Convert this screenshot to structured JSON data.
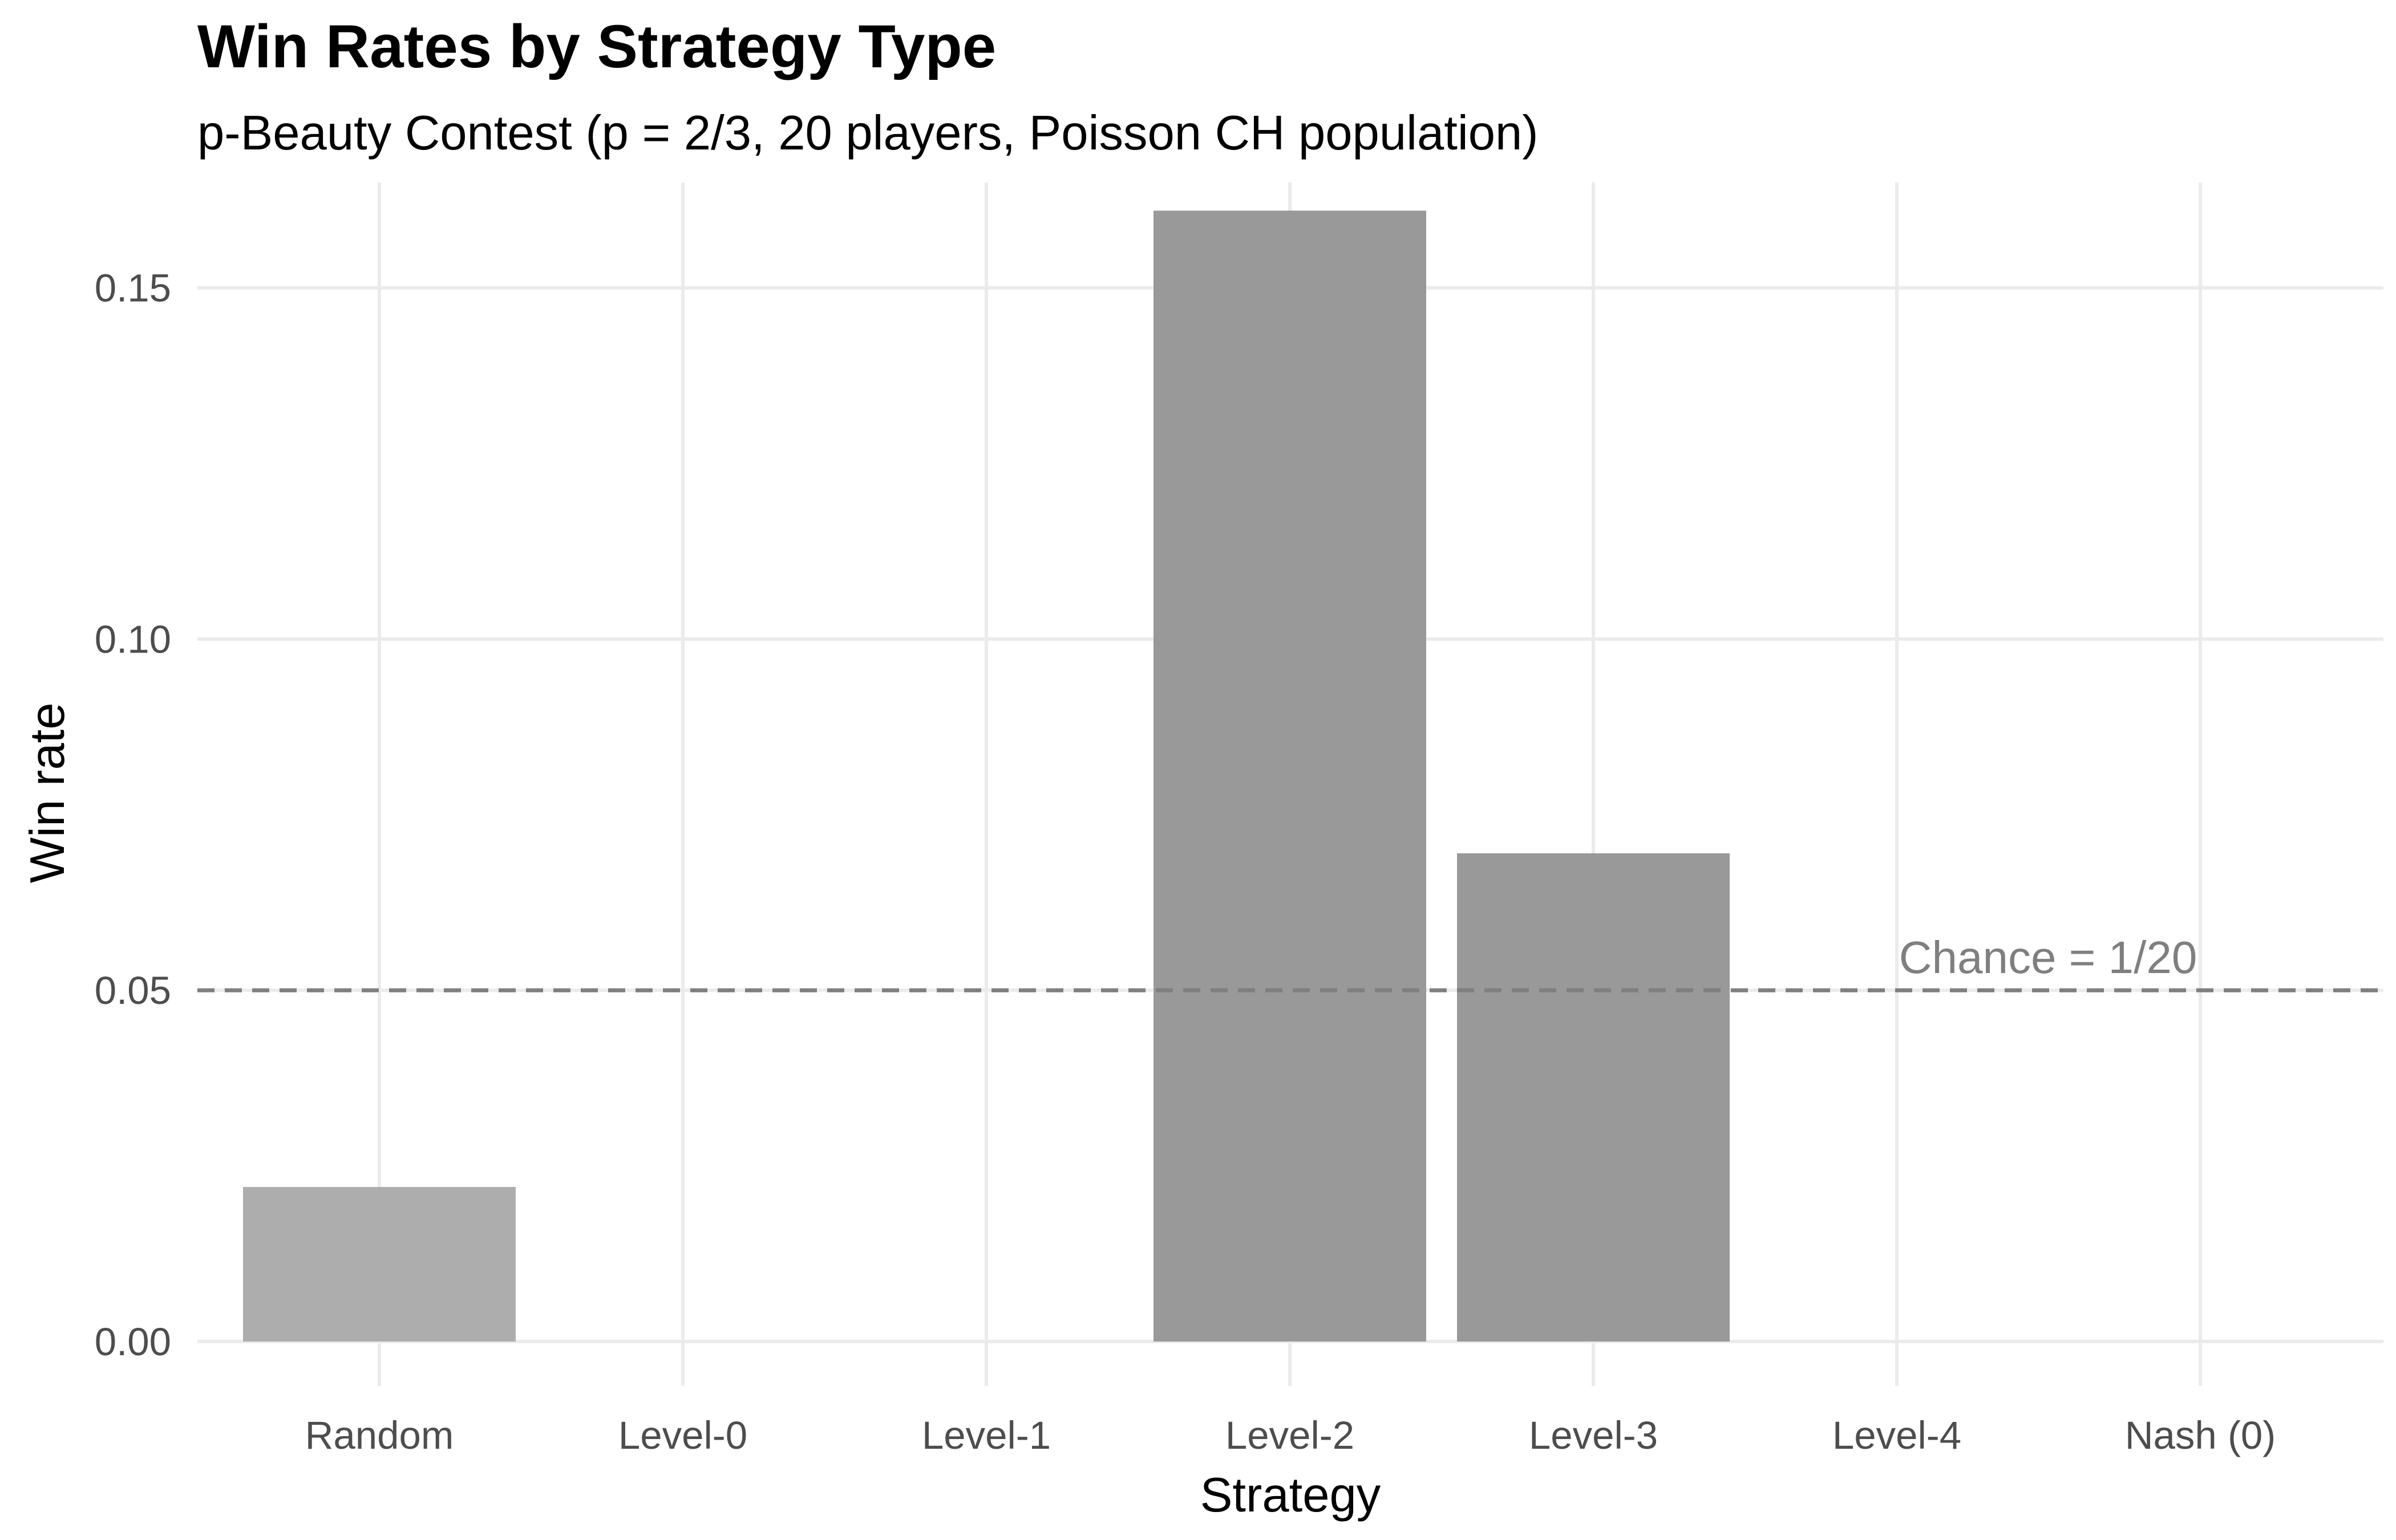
{
  "chart_data": {
    "type": "bar",
    "title": "Win Rates by Strategy Type",
    "subtitle": "p-Beauty Contest (p = 2/3, 20 players, Poisson CH population)",
    "xlabel": "Strategy",
    "ylabel": "Win rate",
    "categories": [
      "Random",
      "Level-0",
      "Level-1",
      "Level-2",
      "Level-3",
      "Level-4",
      "Nash (0)"
    ],
    "values": [
      0.022,
      0.0,
      0.0,
      0.161,
      0.0695,
      0.0,
      0.0
    ],
    "ylim": [
      0,
      0.165
    ],
    "yticks": [
      0.0,
      0.05,
      0.1,
      0.15
    ],
    "ytick_labels": [
      "0.00",
      "0.05",
      "0.10",
      "0.15"
    ],
    "grid": true,
    "legend": "none",
    "bar_colors": [
      "#adadad",
      "#999999",
      "#999999",
      "#999999",
      "#999999",
      "#999999",
      "#999999"
    ],
    "reference_line": {
      "y": 0.05,
      "style": "dashed",
      "color": "#7f7f7f",
      "label": "Chance = 1/20"
    }
  }
}
